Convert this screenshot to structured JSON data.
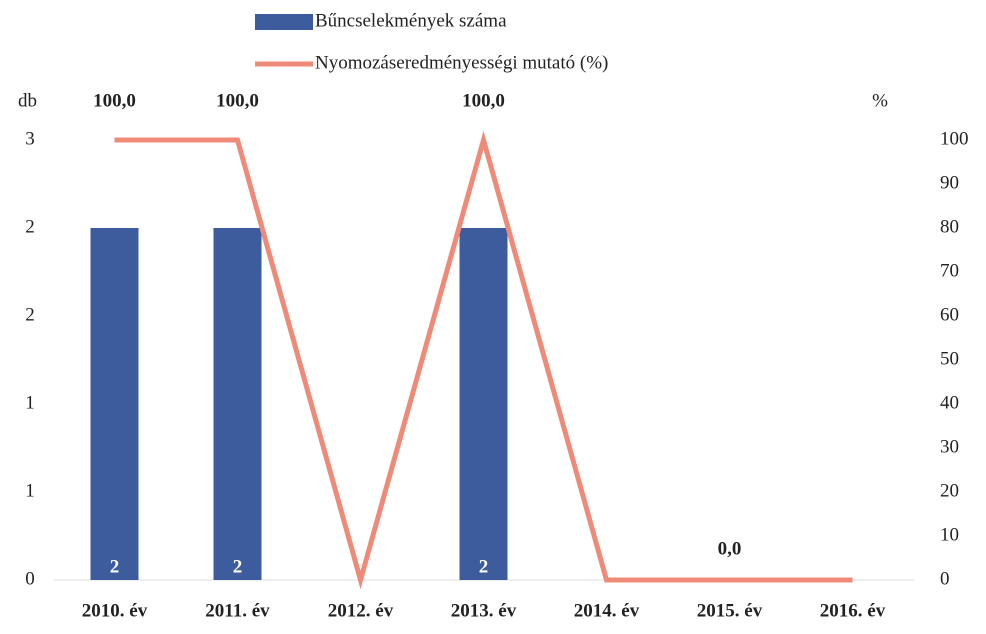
{
  "chart_data": {
    "type": "bar_line",
    "categories": [
      "2010. év",
      "2011. év",
      "2012. év",
      "2013. év",
      "2014. év",
      "2015. év",
      "2016. év"
    ],
    "y_label": "db",
    "y2_label": "%",
    "ylim": [
      0,
      2.5
    ],
    "yticks": [
      {
        "value": 0,
        "label": "0"
      },
      {
        "value": 0.5,
        "label": "1"
      },
      {
        "value": 1,
        "label": "1"
      },
      {
        "value": 1.5,
        "label": "2"
      },
      {
        "value": 2,
        "label": "2"
      },
      {
        "value": 2.5,
        "label": "3"
      }
    ],
    "y2lim": [
      0,
      100
    ],
    "y2ticks": [
      0,
      10,
      20,
      30,
      40,
      50,
      60,
      70,
      80,
      90,
      100
    ],
    "legend": "top",
    "series": [
      {
        "name": "Bűncselekmények száma",
        "type": "bar",
        "color": "#3d5c9e",
        "values": [
          2,
          2,
          0,
          2,
          0,
          0,
          0
        ],
        "value_labels": [
          "2",
          "2",
          null,
          "2",
          null,
          null,
          null
        ]
      },
      {
        "name": "Nyomozáseredményességi mutató (%)",
        "type": "line",
        "axis": "y2",
        "color": "#f08a78",
        "values": [
          100,
          100,
          0,
          100,
          0,
          0,
          0
        ],
        "value_labels": [
          "100,0",
          "100,0",
          null,
          "100,0",
          null,
          "0,0",
          null
        ]
      }
    ]
  }
}
